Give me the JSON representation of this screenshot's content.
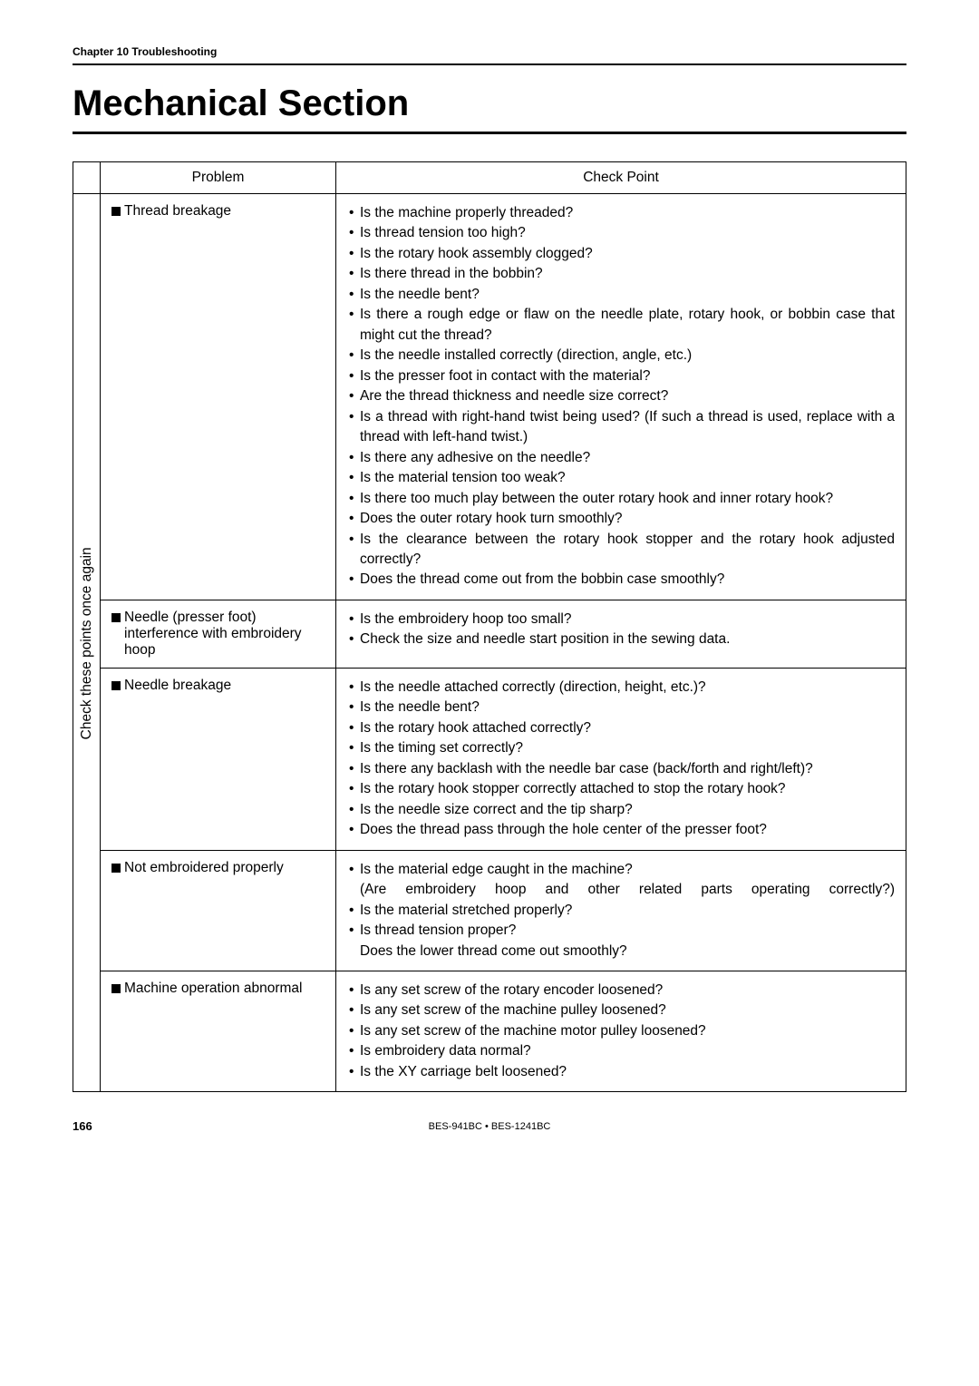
{
  "chapter_header": "Chapter 10  Troubleshooting",
  "main_title": "Mechanical Section",
  "side_header": "Check these points once again",
  "table_headers": {
    "problem": "Problem",
    "check_point": "Check Point"
  },
  "rows": [
    {
      "problem": "Thread breakage",
      "checks": [
        "Is the machine properly threaded?",
        "Is thread tension too high?",
        "Is the rotary hook assembly clogged?",
        "Is there thread in the bobbin?",
        "Is the needle bent?",
        "Is there a rough edge or flaw on the needle plate, rotary hook, or bobbin case that might cut the thread?",
        "Is the needle installed correctly (direction, angle, etc.)",
        "Is the presser foot in contact with the material?",
        "Are the thread thickness and needle size correct?",
        "Is a thread with right-hand twist being used?  (If such a thread is used, replace with a thread with left-hand twist.)",
        "Is there any adhesive on the needle?",
        "Is the material tension too weak?",
        "Is there too much play between the outer rotary hook and inner rotary hook?",
        "Does the outer rotary hook turn smoothly?",
        "Is the clearance between the rotary hook stopper and the rotary hook adjusted correctly?",
        "Does the thread come out from the bobbin case smoothly?"
      ]
    },
    {
      "problem": "Needle (presser foot) interference with embroidery hoop",
      "checks": [
        "Is the embroidery hoop too small?",
        "Check the size and needle start position in the sewing data."
      ]
    },
    {
      "problem": "Needle breakage",
      "checks": [
        "Is the needle attached correctly (direction, height, etc.)?",
        "Is the needle bent?",
        "Is the rotary hook attached correctly?",
        "Is the timing set correctly?",
        "Is there any backlash with the needle bar case (back/forth and right/left)?",
        "Is the rotary hook stopper correctly attached to stop the rotary hook?",
        "Is the needle size correct and the tip sharp?",
        "Does the thread pass through the hole center of the presser foot?"
      ]
    },
    {
      "problem": "Not embroidered properly",
      "checks_special": [
        {
          "text": "Is the material edge caught in the machine?",
          "bullet": true
        },
        {
          "text": "(Are embroidery hoop and other related parts operating correctly?)",
          "bullet": false,
          "indent": true,
          "wide": true
        },
        {
          "text": "Is the material stretched properly?",
          "bullet": true
        },
        {
          "text": "Is thread tension proper?",
          "bullet": true
        },
        {
          "text": "Does the lower thread come out smoothly?",
          "bullet": false,
          "indent": true
        }
      ]
    },
    {
      "problem": "Machine operation abnormal",
      "checks": [
        "Is any set screw of the rotary encoder loosened?",
        "Is any set screw of the machine pulley loosened?",
        "Is any set screw of the machine motor pulley loosened?",
        "Is embroidery data normal?",
        "Is the XY carriage belt loosened?"
      ]
    }
  ],
  "footer": {
    "page": "166",
    "model": "BES-941BC • BES-1241BC"
  }
}
